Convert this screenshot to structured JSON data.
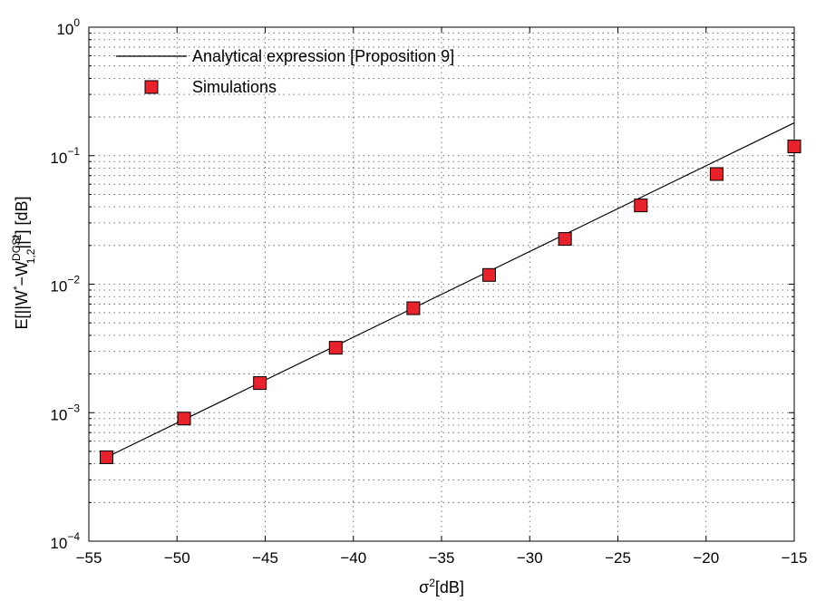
{
  "chart_data": {
    "type": "line",
    "title": "",
    "xlabel": {
      "base": "σ",
      "sup": "2",
      "rest": "[dB]"
    },
    "ylabel": "E[||W*−W^DCSI_1,2||²] [dB]",
    "xlim": [
      -55,
      -15
    ],
    "ylim": [
      0.0001,
      1
    ],
    "yscale": "log",
    "grid": true,
    "legend_position": "top-left",
    "x_ticks": [
      "−55",
      "−50",
      "−45",
      "−40",
      "−35",
      "−30",
      "−25",
      "−20",
      "−15"
    ],
    "y_ticks": [
      {
        "base": "10",
        "exp": "−4"
      },
      {
        "base": "10",
        "exp": "−3"
      },
      {
        "base": "10",
        "exp": "−2"
      },
      {
        "base": "10",
        "exp": "−1"
      },
      {
        "base": "10",
        "exp": "0"
      }
    ],
    "series": [
      {
        "name": "Analytical expression [Proposition 9]",
        "kind": "line",
        "color": "#000000",
        "x": [
          -54,
          -15
        ],
        "y": [
          0.00045,
          0.18
        ]
      },
      {
        "name": "Simulations",
        "kind": "marker",
        "marker": "square",
        "color": "#e8212a",
        "x": [
          -54,
          -49.6,
          -45.3,
          -41,
          -36.6,
          -32.3,
          -28,
          -23.7,
          -19.4,
          -15
        ],
        "y": [
          0.00045,
          0.0009,
          0.0017,
          0.0032,
          0.0065,
          0.0118,
          0.0225,
          0.041,
          0.072,
          0.118
        ]
      }
    ]
  }
}
